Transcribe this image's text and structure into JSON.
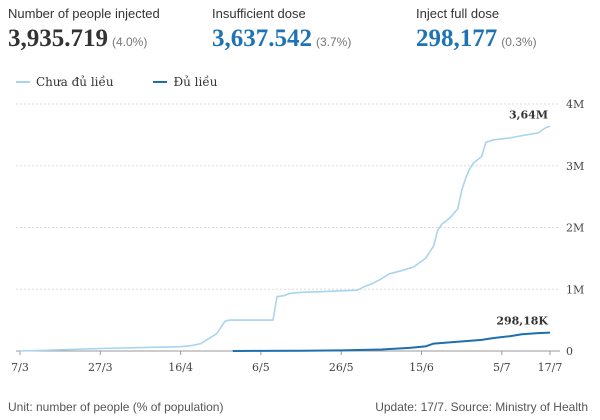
{
  "stats": [
    {
      "label": "Number of people injected",
      "value": "3,935.719",
      "pct": "(4.0%)",
      "color": "#333333"
    },
    {
      "label": "Insufficient dose",
      "value": "3,637.542",
      "pct": "(3.7%)",
      "color": "#1e73b4"
    },
    {
      "label": "Inject full dose",
      "value": "298,177",
      "pct": "(0.3%)",
      "color": "#1e73b4"
    }
  ],
  "footer": {
    "unit": "Unit: number of people (% of population)",
    "source": "Update: 17/7. Source: Ministry of Health"
  },
  "chart_data": {
    "type": "line",
    "x_axis": {
      "ticks": [
        "7/3",
        "27/3",
        "16/4",
        "6/5",
        "26/5",
        "15/6",
        "5/7",
        "17/7"
      ],
      "tick_days": [
        0,
        20,
        40,
        60,
        80,
        100,
        120,
        132
      ],
      "range_days": [
        0,
        132
      ]
    },
    "y_axis": {
      "ticks": [
        "0",
        "1M",
        "2M",
        "3M",
        "4M"
      ],
      "tick_values": [
        0,
        1000000,
        2000000,
        3000000,
        4000000
      ],
      "ylim": [
        0,
        4000000
      ],
      "position": "right"
    },
    "grid": true,
    "legend": "top-left",
    "series": [
      {
        "name": "Chưa đủ liều",
        "color": "#a8d4ee",
        "end_label": "3,64M",
        "points": [
          [
            0,
            0
          ],
          [
            10,
            20000
          ],
          [
            20,
            40000
          ],
          [
            30,
            55000
          ],
          [
            40,
            70000
          ],
          [
            43,
            90000
          ],
          [
            45,
            120000
          ],
          [
            47,
            200000
          ],
          [
            49,
            280000
          ],
          [
            51,
            480000
          ],
          [
            52,
            500000
          ],
          [
            63,
            500000
          ],
          [
            64,
            880000
          ],
          [
            66,
            900000
          ],
          [
            67,
            930000
          ],
          [
            70,
            950000
          ],
          [
            75,
            960000
          ],
          [
            80,
            975000
          ],
          [
            84,
            985000
          ],
          [
            86,
            1050000
          ],
          [
            88,
            1100000
          ],
          [
            90,
            1170000
          ],
          [
            92,
            1250000
          ],
          [
            95,
            1300000
          ],
          [
            98,
            1360000
          ],
          [
            101,
            1500000
          ],
          [
            103,
            1700000
          ],
          [
            104,
            1950000
          ],
          [
            105,
            2050000
          ],
          [
            107,
            2150000
          ],
          [
            109,
            2300000
          ],
          [
            110,
            2600000
          ],
          [
            111,
            2800000
          ],
          [
            112,
            2950000
          ],
          [
            113,
            3050000
          ],
          [
            115,
            3150000
          ],
          [
            116,
            3380000
          ],
          [
            118,
            3420000
          ],
          [
            122,
            3450000
          ],
          [
            126,
            3500000
          ],
          [
            129,
            3530000
          ],
          [
            131,
            3620000
          ],
          [
            132,
            3637542
          ]
        ]
      },
      {
        "name": "Đủ liều",
        "color": "#1e6fb0",
        "end_label": "298,18K",
        "points": [
          [
            53,
            0
          ],
          [
            60,
            1000
          ],
          [
            70,
            5000
          ],
          [
            80,
            10000
          ],
          [
            90,
            25000
          ],
          [
            97,
            50000
          ],
          [
            101,
            75000
          ],
          [
            103,
            120000
          ],
          [
            107,
            140000
          ],
          [
            111,
            160000
          ],
          [
            115,
            180000
          ],
          [
            118,
            210000
          ],
          [
            122,
            240000
          ],
          [
            125,
            270000
          ],
          [
            129,
            290000
          ],
          [
            132,
            298177
          ]
        ]
      }
    ]
  }
}
